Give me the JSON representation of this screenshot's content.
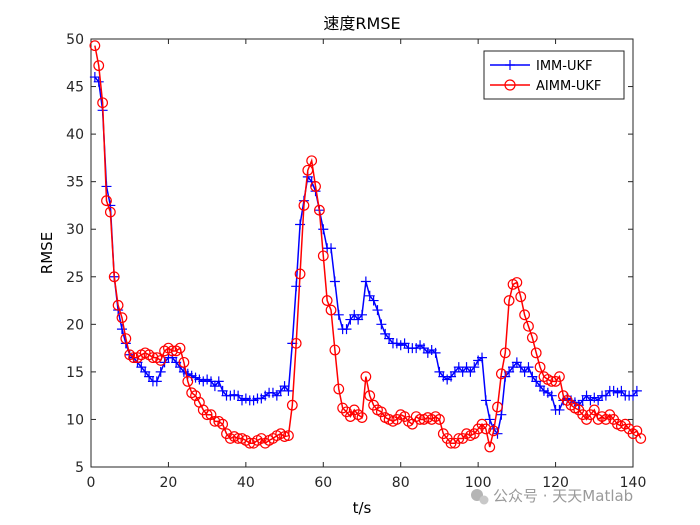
{
  "chart_data": {
    "type": "line",
    "title": "速度RMSE",
    "xlabel": "t/s",
    "ylabel": "RMSE",
    "xlim": [
      0,
      140
    ],
    "ylim": [
      5,
      50
    ],
    "xticks": [
      0,
      20,
      40,
      60,
      80,
      100,
      120,
      140
    ],
    "yticks": [
      5,
      10,
      15,
      20,
      25,
      30,
      35,
      40,
      45,
      50
    ],
    "legend_position": "top-right",
    "series": [
      {
        "name": "IMM-UKF",
        "color": "#0000ff",
        "marker": "plus",
        "values": [
          46.0,
          45.5,
          42.5,
          34.5,
          32.5,
          25.0,
          21.5,
          19.5,
          18.0,
          16.8,
          16.5,
          16.0,
          15.5,
          15.0,
          14.5,
          14.0,
          14.0,
          15.0,
          16.0,
          16.5,
          16.5,
          16.0,
          15.5,
          15.0,
          14.8,
          14.6,
          14.4,
          14.2,
          14.0,
          14.2,
          14.0,
          13.5,
          14.0,
          13.0,
          12.5,
          12.5,
          12.6,
          12.5,
          12.0,
          12.2,
          12.0,
          12.0,
          12.2,
          12.2,
          12.5,
          12.8,
          12.8,
          12.5,
          13.0,
          13.5,
          13.0,
          18.0,
          24.0,
          30.5,
          33.0,
          35.5,
          35.0,
          34.0,
          32.0,
          30.0,
          28.0,
          28.0,
          24.5,
          21.0,
          19.5,
          19.5,
          20.5,
          21.0,
          20.5,
          21.0,
          24.5,
          23.0,
          22.5,
          21.5,
          20.0,
          19.0,
          18.5,
          18.0,
          18.0,
          17.8,
          18.0,
          17.5,
          17.5,
          17.5,
          17.8,
          17.5,
          17.0,
          17.3,
          17.0,
          15.0,
          14.5,
          14.2,
          14.5,
          15.0,
          15.5,
          15.0,
          15.5,
          15.0,
          15.5,
          16.2,
          16.5,
          12.0,
          10.0,
          9.0,
          8.5,
          10.5,
          14.5,
          15.0,
          15.5,
          16.0,
          15.5,
          15.0,
          15.5,
          14.5,
          14.0,
          13.5,
          13.0,
          12.8,
          12.5,
          11.0,
          11.0,
          12.0,
          12.2,
          12.0,
          11.8,
          11.5,
          12.0,
          12.5,
          12.0,
          12.3,
          12.0,
          12.5,
          12.5,
          13.0,
          13.0,
          12.8,
          13.0,
          12.5,
          12.5,
          12.5,
          13.0
        ]
      },
      {
        "name": "AIMM-UKF",
        "color": "#ff0000",
        "marker": "circle",
        "values": [
          49.3,
          47.2,
          43.3,
          33.0,
          31.8,
          25.0,
          22.0,
          20.7,
          18.5,
          16.8,
          16.5,
          16.5,
          16.8,
          17.0,
          16.8,
          16.5,
          16.5,
          16.2,
          17.2,
          17.5,
          17.2,
          17.2,
          17.5,
          16.0,
          14.0,
          12.8,
          12.5,
          11.8,
          11.0,
          10.5,
          10.5,
          9.8,
          9.8,
          9.5,
          8.5,
          8.0,
          8.2,
          8.0,
          8.0,
          7.8,
          7.5,
          7.5,
          7.8,
          8.0,
          7.5,
          7.8,
          8.0,
          8.3,
          8.5,
          8.2,
          8.3,
          11.5,
          18.0,
          25.3,
          32.5,
          36.2,
          37.2,
          34.5,
          32.0,
          27.2,
          22.5,
          21.5,
          17.3,
          13.2,
          11.2,
          10.8,
          10.3,
          11.0,
          10.5,
          10.2,
          14.5,
          12.5,
          11.5,
          11.0,
          10.8,
          10.2,
          10.0,
          9.8,
          10.0,
          10.5,
          10.3,
          9.8,
          9.5,
          10.3,
          10.0,
          10.0,
          10.2,
          10.0,
          10.3,
          10.0,
          8.5,
          8.0,
          7.5,
          7.5,
          8.0,
          8.0,
          8.5,
          8.3,
          8.5,
          9.0,
          9.5,
          9.0,
          7.1,
          8.8,
          11.3,
          14.8,
          17.0,
          22.5,
          24.2,
          24.4,
          22.9,
          21.0,
          19.8,
          18.6,
          17.0,
          15.5,
          14.5,
          14.2,
          14.0,
          14.0,
          14.5,
          12.5,
          12.0,
          11.5,
          11.2,
          11.0,
          10.5,
          10.0,
          10.5,
          11.0,
          10.0,
          10.3,
          10.0,
          10.5,
          10.0,
          9.5,
          9.3,
          9.5,
          9.0,
          8.5,
          8.8,
          8.0
        ]
      }
    ]
  },
  "watermark": "公众号 · 天天Matlab"
}
